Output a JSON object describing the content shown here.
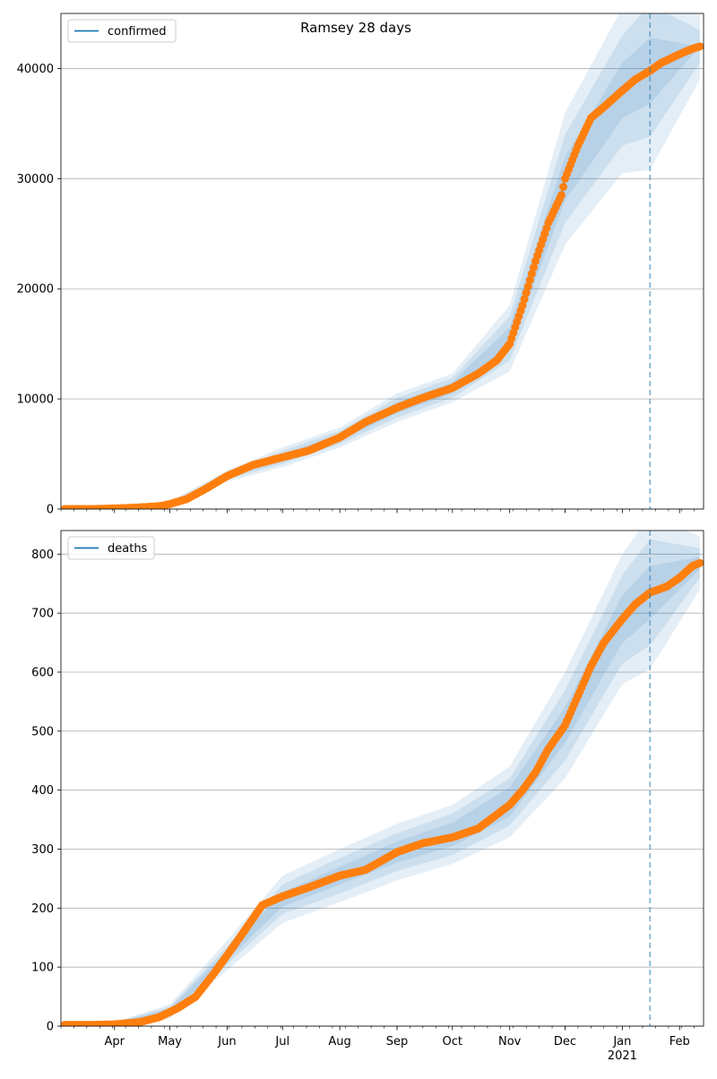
{
  "figure": {
    "title": "Ramsey 28 days"
  },
  "chart_data": [
    {
      "type": "line",
      "panel": "top",
      "legend": {
        "entries": [
          "confirmed"
        ],
        "placement": "top-left"
      },
      "series": [
        {
          "name": "confirmed",
          "kind": "observed points + model line with uncertainty bands",
          "x": [
            "2020-03-05",
            "2020-03-20",
            "2020-04-01",
            "2020-04-15",
            "2020-04-25",
            "2020-05-01",
            "2020-05-10",
            "2020-05-20",
            "2020-06-01",
            "2020-06-15",
            "2020-07-01",
            "2020-07-15",
            "2020-08-01",
            "2020-08-15",
            "2020-09-01",
            "2020-09-15",
            "2020-10-01",
            "2020-10-15",
            "2020-10-25",
            "2020-11-01",
            "2020-11-08",
            "2020-11-15",
            "2020-11-22",
            "2020-11-29",
            "2020-12-01",
            "2020-12-08",
            "2020-12-15",
            "2020-12-22",
            "2021-01-01",
            "2021-01-08",
            "2021-01-16",
            "2021-01-22",
            "2021-02-01",
            "2021-02-08",
            "2021-02-12"
          ],
          "values": [
            0,
            0,
            50,
            150,
            250,
            450,
            900,
            1800,
            3000,
            4000,
            4700,
            5300,
            6500,
            7900,
            9200,
            10100,
            11000,
            12300,
            13500,
            15000,
            18500,
            22500,
            26000,
            28500,
            30000,
            33000,
            35500,
            36500,
            38000,
            39000,
            39800,
            40500,
            41300,
            41800,
            42000
          ]
        }
      ],
      "bands": {
        "x": [
          "2020-04-01",
          "2020-05-01",
          "2020-06-01",
          "2020-07-01",
          "2020-08-01",
          "2020-09-01",
          "2020-10-01",
          "2020-11-01",
          "2020-12-01",
          "2021-01-01",
          "2021-01-16",
          "2021-02-12"
        ],
        "center": [
          50,
          450,
          3000,
          4700,
          6500,
          9200,
          11000,
          15500,
          30000,
          38000,
          39800,
          42000
        ],
        "half_widths": [
          [
            30,
            80,
            150,
            300,
            300,
            500,
            500,
            1000,
            2000,
            2500,
            3000,
            0
          ],
          [
            60,
            150,
            300,
            600,
            600,
            900,
            900,
            2000,
            4000,
            5000,
            6000,
            1500
          ],
          [
            100,
            250,
            500,
            900,
            900,
            1300,
            1300,
            3000,
            6000,
            7500,
            9000,
            3000
          ]
        ]
      },
      "forecast_line_x": "2021-01-16",
      "ylim": [
        0,
        45000
      ],
      "yticks": [
        0,
        10000,
        20000,
        30000,
        40000
      ],
      "ytick_labels": [
        "0",
        "10000",
        "20000",
        "30000",
        "40000"
      ],
      "grid": "horizontal",
      "colors": {
        "line": "#1f77b4",
        "points": "#ff7f0e",
        "band": "#1f77b4"
      }
    },
    {
      "type": "line",
      "panel": "bottom",
      "legend": {
        "entries": [
          "deaths"
        ],
        "placement": "top-left"
      },
      "series": [
        {
          "name": "deaths",
          "kind": "observed points + model line with uncertainty bands",
          "x": [
            "2020-03-05",
            "2020-03-20",
            "2020-04-01",
            "2020-04-15",
            "2020-04-25",
            "2020-05-05",
            "2020-05-15",
            "2020-05-25",
            "2020-06-01",
            "2020-06-10",
            "2020-06-20",
            "2020-07-01",
            "2020-07-15",
            "2020-08-01",
            "2020-08-15",
            "2020-09-01",
            "2020-09-15",
            "2020-10-01",
            "2020-10-15",
            "2020-11-01",
            "2020-11-08",
            "2020-11-15",
            "2020-11-22",
            "2020-12-01",
            "2020-12-08",
            "2020-12-15",
            "2020-12-22",
            "2021-01-01",
            "2021-01-08",
            "2021-01-16",
            "2021-01-25",
            "2021-02-01",
            "2021-02-08",
            "2021-02-12"
          ],
          "values": [
            2,
            2,
            3,
            7,
            15,
            30,
            50,
            90,
            120,
            160,
            205,
            220,
            235,
            255,
            265,
            295,
            310,
            320,
            335,
            375,
            400,
            430,
            470,
            510,
            560,
            610,
            650,
            690,
            715,
            735,
            745,
            760,
            780,
            785
          ]
        }
      ],
      "bands": {
        "x": [
          "2020-04-01",
          "2020-05-01",
          "2020-06-01",
          "2020-07-01",
          "2020-08-01",
          "2020-09-01",
          "2020-10-01",
          "2020-11-01",
          "2020-12-01",
          "2021-01-01",
          "2021-01-16",
          "2021-02-12"
        ],
        "center": [
          3,
          25,
          120,
          215,
          255,
          295,
          325,
          380,
          510,
          690,
          735,
          785
        ],
        "half_widths": [
          [
            2,
            5,
            8,
            12,
            15,
            18,
            20,
            25,
            30,
            40,
            45,
            10
          ],
          [
            3,
            8,
            15,
            25,
            30,
            32,
            35,
            40,
            60,
            75,
            90,
            25
          ],
          [
            4,
            12,
            25,
            40,
            45,
            48,
            50,
            60,
            90,
            110,
            130,
            45
          ]
        ]
      },
      "forecast_line_x": "2021-01-16",
      "ylim": [
        0,
        840
      ],
      "yticks": [
        0,
        100,
        200,
        300,
        400,
        500,
        600,
        700,
        800
      ],
      "ytick_labels": [
        "0",
        "100",
        "200",
        "300",
        "400",
        "500",
        "600",
        "700",
        "800"
      ],
      "grid": "horizontal",
      "colors": {
        "line": "#1f77b4",
        "points": "#ff7f0e",
        "band": "#1f77b4"
      }
    }
  ],
  "shared_x_axis": {
    "range": [
      "2020-03-03",
      "2021-02-14"
    ],
    "major_ticks": [
      "2020-04-01",
      "2020-05-01",
      "2020-06-01",
      "2020-07-01",
      "2020-08-01",
      "2020-09-01",
      "2020-10-01",
      "2020-11-01",
      "2020-12-01",
      "2021-01-01",
      "2021-02-01"
    ],
    "major_labels": [
      "Apr",
      "May",
      "Jun",
      "Jul",
      "Aug",
      "Sep",
      "Oct",
      "Nov",
      "Dec",
      "Jan",
      "Feb"
    ],
    "year_label": "2021",
    "minor_tick_interval_days": 7
  }
}
